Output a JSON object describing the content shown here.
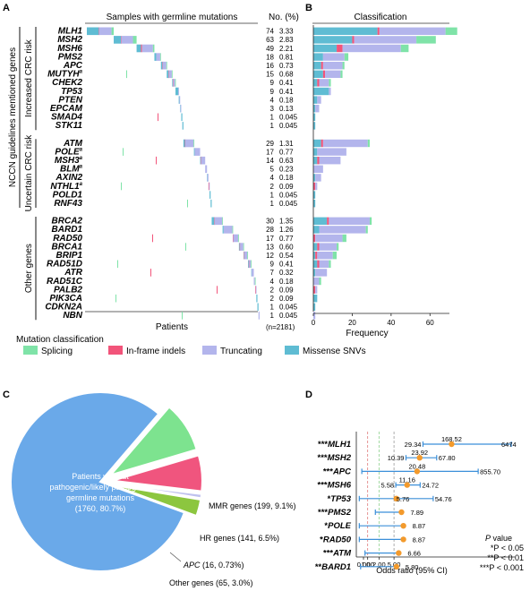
{
  "panel_letters": [
    "A",
    "B",
    "C",
    "D"
  ],
  "panel_a": {
    "title": "Samples with germline mutations",
    "no_header": "No. (%)",
    "x_label": "Patients",
    "n_total": "(n=2181)",
    "side_label": "NCCN guidelines mentioned genes",
    "groups": [
      {
        "label": "Increased CRC risk",
        "genes": [
          "MLH1",
          "MSH2",
          "MSH6",
          "PMS2",
          "APC",
          "MUTYH",
          "CHEK2",
          "TP53",
          "PTEN",
          "EPCAM",
          "SMAD4",
          "STK11"
        ]
      },
      {
        "label": "Uncertain CRC risk",
        "genes": [
          "ATM",
          "POLE",
          "MSH3",
          "BLM",
          "AXIN2",
          "NTHL1",
          "POLD1",
          "RNF43"
        ]
      },
      {
        "label": "Other genes",
        "genes": [
          "BRCA2",
          "BARD1",
          "RAD50",
          "BRCA1",
          "BRIP1",
          "RAD51D",
          "ATR",
          "RAD51C",
          "PALB2",
          "PIK3CA",
          "CDKN2A",
          "NBN"
        ]
      }
    ],
    "superscript_genes": [
      "MUTYH",
      "POLE",
      "MSH3",
      "BLM",
      "NTHL1"
    ],
    "superscript_mark": "a",
    "counts": {
      "MLH1": [
        "74",
        "3.33"
      ],
      "MSH2": [
        "63",
        "2.83"
      ],
      "MSH6": [
        "49",
        "2.21"
      ],
      "PMS2": [
        "18",
        "0.81"
      ],
      "APC": [
        "16",
        "0.73"
      ],
      "MUTYH": [
        "15",
        "0.68"
      ],
      "CHEK2": [
        "9",
        "0.41"
      ],
      "TP53": [
        "9",
        "0.41"
      ],
      "PTEN": [
        "4",
        "0.18"
      ],
      "EPCAM": [
        "3",
        "0.13"
      ],
      "SMAD4": [
        "1",
        "0.045"
      ],
      "STK11": [
        "1",
        "0.045"
      ],
      "ATM": [
        "29",
        "1.31"
      ],
      "POLE": [
        "17",
        "0.77"
      ],
      "MSH3": [
        "14",
        "0.63"
      ],
      "BLM": [
        "5",
        "0.23"
      ],
      "AXIN2": [
        "4",
        "0.18"
      ],
      "NTHL1": [
        "2",
        "0.09"
      ],
      "POLD1": [
        "1",
        "0.045"
      ],
      "RNF43": [
        "1",
        "0.045"
      ],
      "BRCA2": [
        "30",
        "1.35"
      ],
      "BARD1": [
        "28",
        "1.26"
      ],
      "RAD50": [
        "17",
        "0.77"
      ],
      "BRCA1": [
        "13",
        "0.60"
      ],
      "BRIP1": [
        "12",
        "0.54"
      ],
      "RAD51D": [
        "9",
        "0.41"
      ],
      "ATR": [
        "7",
        "0.32"
      ],
      "RAD51C": [
        "4",
        "0.18"
      ],
      "PALB2": [
        "2",
        "0.09"
      ],
      "PIK3CA": [
        "2",
        "0.09"
      ],
      "CDKN2A": [
        "1",
        "0.045"
      ],
      "NBN": [
        "1",
        "0.045"
      ]
    }
  },
  "legend": {
    "title": "Mutation classification",
    "items": [
      {
        "label": "Splicing",
        "color": "#7fe3a8"
      },
      {
        "label": "In-frame indels",
        "color": "#f2547a"
      },
      {
        "label": "Truncating",
        "color": "#b3b5ec"
      },
      {
        "label": "Missense SNVs",
        "color": "#5fbcd3"
      }
    ]
  },
  "colors": {
    "splicing": "#7fe3a8",
    "indel": "#f2547a",
    "truncating": "#b3b5ec",
    "missense": "#5fbcd3",
    "pie_main": "#6aa9e9",
    "pie_mmr": "#7de38f",
    "pie_hr": "#f0557e",
    "pie_apc": "#bfc1ef",
    "pie_other": "#8cc63f",
    "dot": "#f39a2c",
    "ci": "#3b8fd9"
  },
  "chart_data": [
    {
      "type": "bar",
      "panel": "B",
      "title": "Classification",
      "xlabel": "Frequency",
      "xlim": [
        0,
        70
      ],
      "xticks": [
        "0",
        "20",
        "40",
        "60"
      ],
      "stack_order": [
        "Missense SNVs",
        "In-frame indels",
        "Truncating",
        "Splicing"
      ],
      "categories": [
        "MLH1",
        "MSH2",
        "MSH6",
        "PMS2",
        "APC",
        "MUTYH",
        "CHEK2",
        "TP53",
        "PTEN",
        "EPCAM",
        "SMAD4",
        "STK11",
        "ATM",
        "POLE",
        "MSH3",
        "BLM",
        "AXIN2",
        "NTHL1",
        "POLD1",
        "RNF43",
        "BRCA2",
        "BARD1",
        "RAD50",
        "BRCA1",
        "BRIP1",
        "RAD51D",
        "ATR",
        "RAD51C",
        "PALB2",
        "PIK3CA",
        "CDKN2A",
        "NBN"
      ],
      "series": [
        {
          "name": "Missense SNVs",
          "values": [
            33,
            20,
            12,
            5,
            4,
            5,
            2,
            8,
            2,
            1,
            1,
            1,
            4,
            2,
            2,
            0,
            1,
            0,
            1,
            1,
            7,
            3,
            0,
            2,
            1,
            2,
            1,
            0,
            0,
            2,
            1,
            0
          ]
        },
        {
          "name": "In-frame indels",
          "values": [
            1,
            1,
            3,
            0,
            1,
            1,
            1,
            0,
            0,
            0,
            0,
            0,
            1,
            0,
            1,
            0,
            0,
            1,
            0,
            0,
            1,
            0,
            1,
            1,
            1,
            1,
            0,
            0,
            1,
            0,
            0,
            0
          ]
        },
        {
          "name": "Truncating",
          "values": [
            34,
            32,
            30,
            11,
            10,
            8,
            5,
            1,
            2,
            2,
            0,
            0,
            23,
            15,
            11,
            5,
            3,
            1,
            0,
            0,
            21,
            24,
            14,
            9,
            8,
            5,
            6,
            3,
            1,
            0,
            0,
            1
          ]
        },
        {
          "name": "Splicing",
          "values": [
            6,
            10,
            4,
            2,
            1,
            1,
            1,
            0,
            0,
            0,
            0,
            0,
            1,
            0,
            0,
            0,
            0,
            0,
            0,
            0,
            1,
            1,
            2,
            1,
            2,
            1,
            0,
            1,
            0,
            0,
            0,
            0
          ]
        }
      ]
    },
    {
      "type": "pie",
      "panel": "C",
      "slices": [
        {
          "label": "Patients without pathogenic/likely pathogenic germline mutations",
          "count": 1760,
          "percent": 80.7,
          "text": "(1760, 80.7%)"
        },
        {
          "label": "MMR genes",
          "count": 199,
          "percent": 9.1,
          "text": "(199, 9.1%)"
        },
        {
          "label": "HR genes",
          "count": 141,
          "percent": 6.5,
          "text": "(141, 6.5%)"
        },
        {
          "label": "APC",
          "count": 16,
          "percent": 0.73,
          "text": "(16, 0.73%)"
        },
        {
          "label": "Other genes",
          "count": 65,
          "percent": 3.0,
          "text": "(65, 3.0%)"
        }
      ]
    },
    {
      "type": "scatter",
      "panel": "D",
      "subtype": "forest",
      "xlabel": "Odds ratio (95% CI)",
      "xscale": "log",
      "xticks": [
        "0.00",
        "1.00",
        "2.00",
        "5.00"
      ],
      "reference_lines": [
        1.0,
        2.0,
        5.0
      ],
      "rows": [
        {
          "stars": "***",
          "gene": "MLH1",
          "or": 168.52,
          "lo": 29.34,
          "hi": 6474,
          "labels": {
            "or": "168.52",
            "lo": "29.34",
            "hi": "6474"
          }
        },
        {
          "stars": "***",
          "gene": "MSH2",
          "or": 23.92,
          "lo": 10.39,
          "hi": 67.8,
          "labels": {
            "or": "23.92",
            "lo": "10.39",
            "hi": "67.80"
          }
        },
        {
          "stars": "***",
          "gene": "APC",
          "or": 20.48,
          "lo": 0.7,
          "hi": 855.7,
          "labels": {
            "or": "20.48",
            "lo": "",
            "hi": "855.70"
          }
        },
        {
          "stars": "***",
          "gene": "MSH6",
          "or": 11.16,
          "lo": 5.58,
          "hi": 24.72,
          "labels": {
            "or": "11.16",
            "lo": "5.58",
            "hi": "24.72"
          }
        },
        {
          "stars": "*",
          "gene": "TP53",
          "or": 5.76,
          "lo": 0.6,
          "hi": 54.76,
          "labels": {
            "or": "5.76",
            "lo": "",
            "hi": "54.76"
          }
        },
        {
          "stars": "***",
          "gene": "PMS2",
          "or": 7.89,
          "lo": 1.6,
          "hi": 7.89,
          "labels": {
            "or": "7.89",
            "lo": "",
            "hi": ""
          }
        },
        {
          "stars": "*",
          "gene": "POLE",
          "or": 8.87,
          "lo": 0.6,
          "hi": 8.87,
          "labels": {
            "or": "8.87",
            "lo": "",
            "hi": ""
          }
        },
        {
          "stars": "*",
          "gene": "RAD50",
          "or": 8.87,
          "lo": 0.6,
          "hi": 8.87,
          "labels": {
            "or": "8.87",
            "lo": "",
            "hi": ""
          }
        },
        {
          "stars": "***",
          "gene": "ATM",
          "or": 6.66,
          "lo": 0.85,
          "hi": 6.66,
          "labels": {
            "or": "6.66",
            "lo": "",
            "hi": ""
          }
        },
        {
          "stars": "**",
          "gene": "BARD1",
          "or": 5.8,
          "lo": 0.65,
          "hi": 5.8,
          "labels": {
            "or": "5.80",
            "lo": "",
            "hi": ""
          }
        }
      ],
      "pvalue_legend": {
        "title_italic": "P",
        "title_rest": " value",
        "lines": [
          "*P < 0.05",
          "**P < 0.01",
          "***P < 0.001"
        ]
      }
    }
  ],
  "pie_labels": {
    "main_lines": [
      "Patients without",
      "pathogenic/likely pathogenic",
      "germline mutations",
      "(1760, 80.7%)"
    ],
    "mmr": "MMR genes (199, 9.1%)",
    "hr": "HR genes (141, 6.5%)",
    "apc_name": "APC",
    "apc_rest": " (16, 0.73%)",
    "other": "Other genes (65, 3.0%)"
  }
}
